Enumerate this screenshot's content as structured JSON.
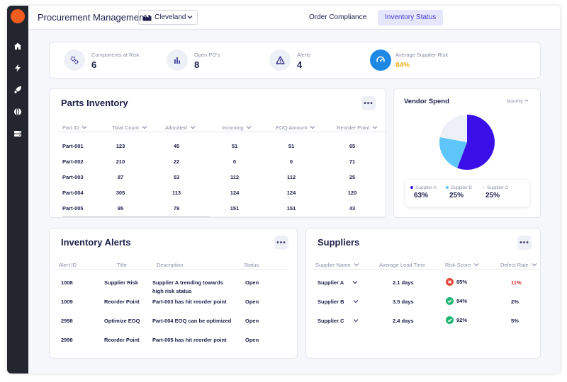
{
  "header": {
    "title": "Procurement Management",
    "location": "Cleveland",
    "tabs": [
      {
        "label": "Order Compliance",
        "active": false
      },
      {
        "label": "Inventory Status",
        "active": true
      }
    ]
  },
  "sidebar": {
    "items": [
      {
        "icon": "home-icon"
      },
      {
        "icon": "lightning-icon"
      },
      {
        "icon": "rocket-icon"
      },
      {
        "icon": "globe-icon"
      },
      {
        "icon": "server-icon"
      }
    ]
  },
  "stats": [
    {
      "label": "Components at Risk",
      "value": "6",
      "icon": "gears-icon"
    },
    {
      "label": "Open PO's",
      "value": "8",
      "icon": "bar-chart-icon"
    },
    {
      "label": "Alerts",
      "value": "4",
      "icon": "warning-icon"
    },
    {
      "label": "Average Supplier Risk",
      "value": "84%",
      "icon": "gauge-icon",
      "value_color": "#f2b01e"
    }
  ],
  "parts": {
    "title": "Parts Inventory",
    "more": "•••",
    "columns": [
      "Part ID",
      "Total Count",
      "Allocated",
      "Incoming",
      "EOQ Amount",
      "Reorder Point"
    ],
    "rows": [
      [
        "Part-001",
        "123",
        "45",
        "51",
        "51",
        "65"
      ],
      [
        "Part-002",
        "210",
        "22",
        "0",
        "0",
        "71"
      ],
      [
        "Part-003",
        "87",
        "53",
        "112",
        "112",
        "25"
      ],
      [
        "Part-004",
        "305",
        "113",
        "124",
        "124",
        "120"
      ],
      [
        "Part-005",
        "95",
        "79",
        "151",
        "151",
        "43"
      ]
    ]
  },
  "vendor": {
    "title": "Vendor Spend",
    "period": "Monthly",
    "legend": [
      {
        "name": "Supplier A",
        "value": "63%",
        "color": "#3b10e8"
      },
      {
        "name": "Supplier B",
        "value": "25%",
        "color": "#5ec6fa"
      },
      {
        "name": "Supplier C",
        "value": "25%",
        "color": "#eef0f7"
      }
    ]
  },
  "chart_data": {
    "type": "pie",
    "title": "Vendor Spend",
    "categories": [
      "Supplier A",
      "Supplier B",
      "Supplier C"
    ],
    "values": [
      63,
      25,
      25
    ],
    "colors": [
      "#3b10e8",
      "#5ec6fa",
      "#eef0f7"
    ]
  },
  "alerts": {
    "title": "Inventory Alerts",
    "more": "•••",
    "columns": [
      "Alert ID",
      "Title",
      "Description",
      "Status"
    ],
    "rows": [
      {
        "id": "1008",
        "title": "Supplier Risk",
        "desc1": "Supplier A trending towards",
        "desc2": "high risk status",
        "status": "Open"
      },
      {
        "id": "1009",
        "title": "Reorder Point",
        "desc1": "Part-003 has hit reorder point",
        "desc2": "",
        "status": "Open"
      },
      {
        "id": "2998",
        "title": "Optimize EOQ",
        "desc1": "Part-004 EOQ can be optimized",
        "desc2": "",
        "status": "Open"
      },
      {
        "id": "2996",
        "title": "Reorder Point",
        "desc1": "Part-005 has hit reorder point",
        "desc2": "",
        "status": "Open"
      }
    ]
  },
  "suppliers": {
    "title": "Suppliers",
    "more": "•••",
    "columns": [
      "Supplier Name",
      "Average Lead Time",
      "Risk Score",
      "Defect Rate"
    ],
    "rows": [
      {
        "name": "Supplier A",
        "lead": "2.1 days",
        "risk": "65%",
        "risk_status": "bad",
        "defect": "11%",
        "defect_color": "#d93025"
      },
      {
        "name": "Supplier B",
        "lead": "3.5 days",
        "risk": "94%",
        "risk_status": "good",
        "defect": "2%",
        "defect_color": "#1c1f4a"
      },
      {
        "name": "Supplier C",
        "lead": "2.4 days",
        "risk": "92%",
        "risk_status": "good",
        "defect": "5%",
        "defect_color": "#1c1f4a"
      }
    ]
  }
}
